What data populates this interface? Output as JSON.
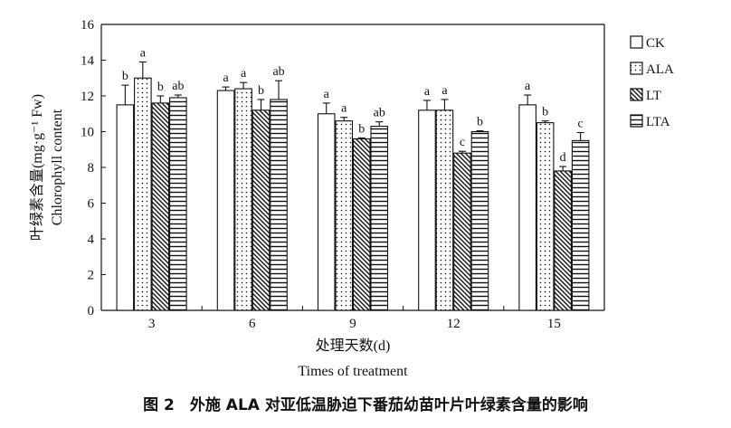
{
  "chart_data": {
    "type": "bar",
    "categories": [
      "3",
      "6",
      "9",
      "12",
      "15"
    ],
    "series": [
      {
        "name": "CK",
        "values": [
          11.5,
          12.3,
          11.0,
          11.2,
          11.5
        ],
        "errors": [
          1.1,
          0.2,
          0.6,
          0.55,
          0.55
        ],
        "letters": [
          "b",
          "a",
          "a",
          "a",
          "a"
        ],
        "pattern": "solid"
      },
      {
        "name": "ALA",
        "values": [
          13.0,
          12.4,
          10.6,
          11.2,
          10.5
        ],
        "errors": [
          0.9,
          0.35,
          0.2,
          0.6,
          0.1
        ],
        "letters": [
          "a",
          "a",
          "a",
          "a",
          "b"
        ],
        "pattern": "dots"
      },
      {
        "name": "LT",
        "values": [
          11.6,
          11.2,
          9.6,
          8.8,
          7.8
        ],
        "errors": [
          0.4,
          0.6,
          0.05,
          0.1,
          0.25
        ],
        "letters": [
          "b",
          "b",
          "b",
          "c",
          "d"
        ],
        "pattern": "diagonal"
      },
      {
        "name": "LTA",
        "values": [
          11.9,
          11.8,
          10.3,
          10.0,
          9.5
        ],
        "errors": [
          0.15,
          1.05,
          0.25,
          0.05,
          0.45
        ],
        "letters": [
          "ab",
          "ab",
          "ab",
          "b",
          "c"
        ],
        "pattern": "horizontal"
      }
    ],
    "ylim": [
      0,
      16
    ],
    "yticks": [
      "0",
      "2",
      "4",
      "6",
      "8",
      "10",
      "12",
      "14",
      "16"
    ],
    "ylabel_cn": "叶绿素含量(mg·g⁻¹ Fw)",
    "ylabel_en": "Chlorophyll content",
    "xlabel_cn": "处理天数(d)",
    "xlabel_en": "Times of treatment",
    "legend_position": "top-right",
    "grid": false
  },
  "caption": "图 2　外施 ALA 对亚低温胁迫下番茄幼苗叶片叶绿素含量的影响"
}
